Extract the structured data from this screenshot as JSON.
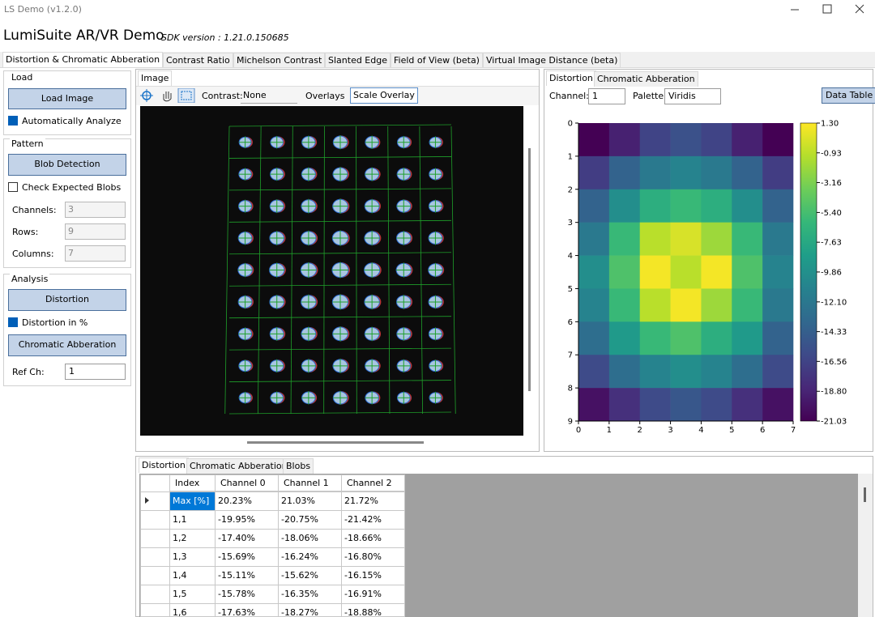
{
  "window": {
    "title": "LS Demo (v1.2.0)"
  },
  "header": {
    "app_title": "LumiSuite AR/VR Demo",
    "sdk_version": "SDK version : 1.21.0.150685"
  },
  "tabs": [
    "Distortion & Chromatic Abberation",
    "Contrast Ratio",
    "Michelson Contrast",
    "Slanted Edge",
    "Field of View (beta)",
    "Virtual Image Distance (beta)"
  ],
  "left_panel": {
    "load": {
      "title": "Load",
      "button": "Load Image",
      "checkbox": "Automatically Analyze"
    },
    "pattern": {
      "title": "Pattern",
      "button": "Blob Detection",
      "checkbox": "Check Expected Blobs",
      "fields": [
        {
          "label": "Channels:",
          "value": "3"
        },
        {
          "label": "Rows:",
          "value": "9"
        },
        {
          "label": "Columns:",
          "value": "7"
        }
      ]
    },
    "analysis": {
      "title": "Analysis",
      "button": "Distortion",
      "checkbox": "Distortion in %",
      "button2": "Chromatic Abberation",
      "ref_label": "Ref Ch:",
      "ref_value": "1"
    }
  },
  "image_panel": {
    "tab": "Image",
    "contrast_label": "Contrast:",
    "contrast_value": "None",
    "overlays": "Overlays",
    "scale_overlay": "Scale Overlay"
  },
  "plot_panel": {
    "tabs": [
      "Distortion",
      "Chromatic Abberation"
    ],
    "channel_label": "Channel:",
    "channel_value": "1",
    "palette_label": "Palette:",
    "palette_value": "Viridis",
    "data_table": "Data Table",
    "heatmap": {
      "xlim": [
        0,
        7
      ],
      "ylim": [
        0,
        9
      ],
      "xticks": [
        0,
        1,
        2,
        3,
        4,
        5,
        6,
        7
      ],
      "yticks": [
        0,
        1,
        2,
        3,
        4,
        5,
        6,
        7,
        8,
        9
      ],
      "zlim": [
        -21.03,
        1.3
      ],
      "colorbar_ticks": [
        {
          "value": 1.3,
          "label": "1.30"
        },
        {
          "value": -0.93,
          "label": "-0.93"
        },
        {
          "value": -3.16,
          "label": "-3.16"
        },
        {
          "value": -5.4,
          "label": "-5.40"
        },
        {
          "value": -7.63,
          "label": "-7.63"
        },
        {
          "value": -9.86,
          "label": "-9.86"
        },
        {
          "value": -12.1,
          "label": "-12.10"
        },
        {
          "value": -14.33,
          "label": "-14.33"
        },
        {
          "value": -16.56,
          "label": "-16.56"
        },
        {
          "value": -18.8,
          "label": "-18.80"
        },
        {
          "value": -21.03,
          "label": "-21.03"
        }
      ],
      "values": [
        [
          -21,
          -19,
          -16.5,
          -15.5,
          -16.5,
          -19,
          -21
        ],
        [
          -17,
          -14,
          -12,
          -11,
          -12,
          -14,
          -17
        ],
        [
          -14,
          -10,
          -7,
          -6,
          -7,
          -10,
          -14
        ],
        [
          -12,
          -6,
          -1,
          0,
          -2,
          -6,
          -12
        ],
        [
          -10,
          -5,
          1,
          -1,
          1,
          -5,
          -11
        ],
        [
          -11,
          -6,
          -1,
          1,
          -2,
          -6,
          -12
        ],
        [
          -13,
          -9,
          -6,
          -5,
          -7,
          -9,
          -14
        ],
        [
          -16,
          -13,
          -11,
          -10,
          -11,
          -13,
          -16
        ],
        [
          -20,
          -18,
          -16,
          -15,
          -16,
          -18,
          -20
        ]
      ]
    }
  },
  "bottom_panel": {
    "tabs": [
      "Distortion",
      "Chromatic Abberation",
      "Blobs"
    ],
    "table": {
      "columns": [
        "Index",
        "Channel 0",
        "Channel 1",
        "Channel 2"
      ],
      "rows": [
        [
          "Max [%]",
          "20.23%",
          "21.03%",
          "21.72%"
        ],
        [
          "1,1",
          "-19.95%",
          "-20.75%",
          "-21.42%"
        ],
        [
          "1,2",
          "-17.40%",
          "-18.06%",
          "-18.66%"
        ],
        [
          "1,3",
          "-15.69%",
          "-16.24%",
          "-16.80%"
        ],
        [
          "1,4",
          "-15.11%",
          "-15.62%",
          "-16.15%"
        ],
        [
          "1,5",
          "-15.78%",
          "-16.35%",
          "-16.91%"
        ],
        [
          "1,6",
          "-17.63%",
          "-18.27%",
          "-18.88%"
        ]
      ]
    }
  }
}
